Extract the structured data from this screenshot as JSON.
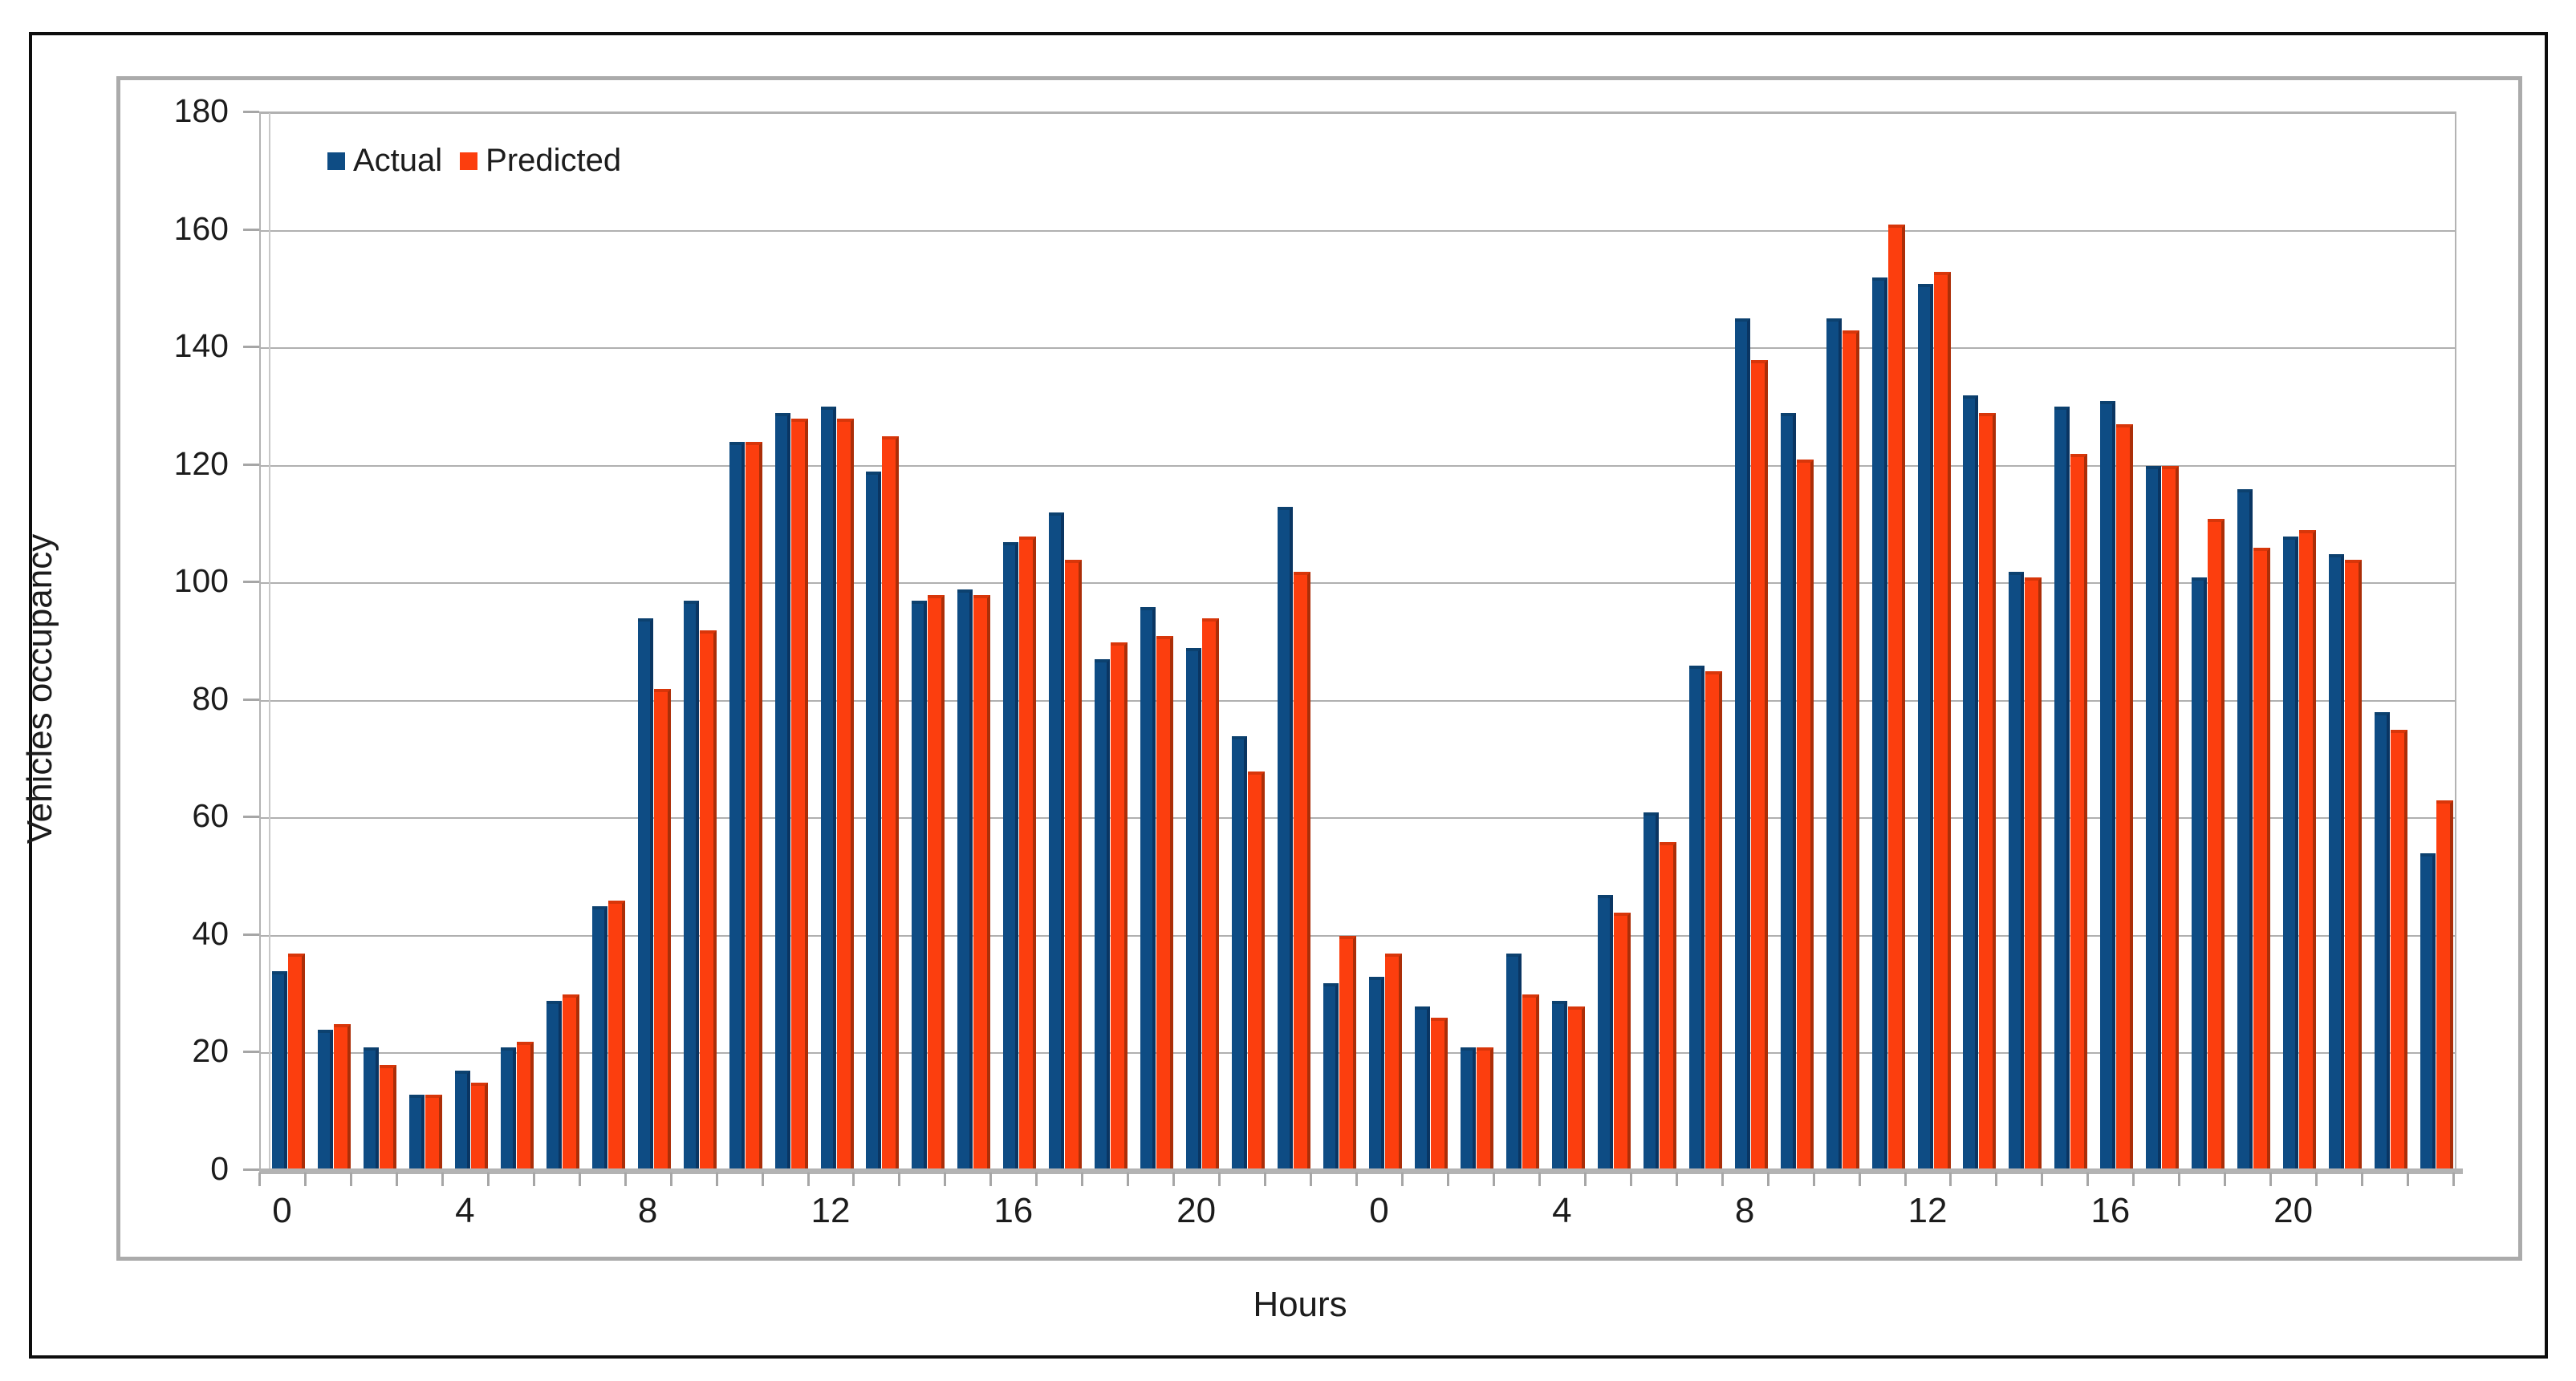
{
  "figure": {
    "x_axis_title": "Hours",
    "y_axis_title": "Vehicles occupancy"
  },
  "legend": {
    "items": [
      {
        "label": "Actual",
        "color": "#0e4c84"
      },
      {
        "label": "Predicted",
        "color": "#fc3e0e"
      }
    ]
  },
  "chart_data": {
    "type": "bar",
    "title": "",
    "xlabel": "Hours",
    "ylabel": "Vehicles occupancy",
    "ylim": [
      0,
      180
    ],
    "ytick_step": 20,
    "y_tick_labels": [
      "0",
      "20",
      "40",
      "60",
      "80",
      "100",
      "120",
      "140",
      "160",
      "180"
    ],
    "grid": "horizontal",
    "legend_position": "top-left-inside",
    "categories_note": "48 hourly bins: two consecutive days, hours 0-23 each",
    "categories": [
      0,
      1,
      2,
      3,
      4,
      5,
      6,
      7,
      8,
      9,
      10,
      11,
      12,
      13,
      14,
      15,
      16,
      17,
      18,
      19,
      20,
      21,
      22,
      23,
      0,
      1,
      2,
      3,
      4,
      5,
      6,
      7,
      8,
      9,
      10,
      11,
      12,
      13,
      14,
      15,
      16,
      17,
      18,
      19,
      20,
      21,
      22,
      23
    ],
    "x_tick_labels": [
      "0",
      "4",
      "8",
      "12",
      "16",
      "20",
      "0",
      "4",
      "8",
      "12",
      "16",
      "20"
    ],
    "x_tick_label_cells": [
      0,
      4,
      8,
      12,
      16,
      20,
      24,
      28,
      32,
      36,
      40,
      44
    ],
    "series": [
      {
        "name": "Actual",
        "color": "#0e4c84",
        "values": [
          34,
          24,
          21,
          13,
          17,
          21,
          29,
          45,
          94,
          97,
          124,
          129,
          130,
          119,
          97,
          99,
          107,
          112,
          87,
          96,
          89,
          74,
          113,
          32,
          33,
          28,
          21,
          37,
          29,
          47,
          61,
          86,
          145,
          129,
          145,
          152,
          151,
          132,
          102,
          130,
          131,
          120,
          101,
          116,
          108,
          105,
          78,
          54
        ]
      },
      {
        "name": "Predicted",
        "color": "#fc3e0e",
        "values": [
          37,
          25,
          18,
          13,
          15,
          22,
          30,
          46,
          82,
          92,
          124,
          128,
          128,
          125,
          98,
          98,
          108,
          104,
          90,
          91,
          94,
          68,
          102,
          40,
          37,
          26,
          21,
          30,
          28,
          44,
          56,
          85,
          138,
          121,
          143,
          161,
          153,
          129,
          101,
          122,
          127,
          120,
          111,
          106,
          109,
          104,
          75,
          63
        ]
      }
    ]
  }
}
